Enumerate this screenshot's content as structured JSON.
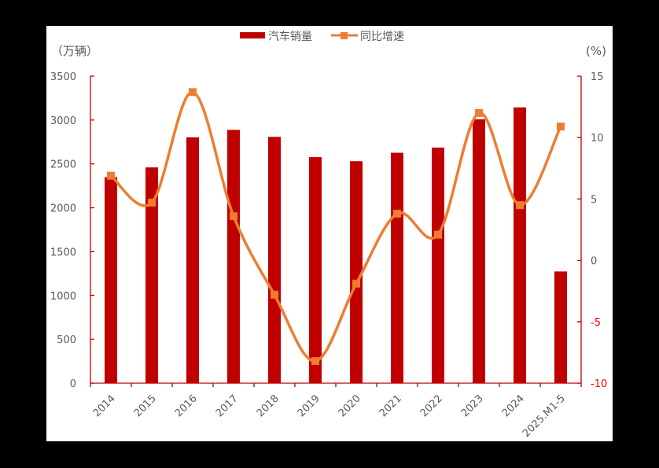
{
  "chart_data": {
    "type": "bar+line",
    "title": "",
    "categories": [
      "2014",
      "2015",
      "2016",
      "2017",
      "2018",
      "2019",
      "2020",
      "2021",
      "2022",
      "2023",
      "2024",
      "2025.M1-5"
    ],
    "series": [
      {
        "name": "汽车销量",
        "type": "bar",
        "axis": "left",
        "color": "#c00000",
        "values": [
          2349,
          2460,
          2803,
          2888,
          2808,
          2577,
          2531,
          2627,
          2686,
          3009,
          3144,
          1275
        ]
      },
      {
        "name": "同比增速",
        "type": "line",
        "axis": "right",
        "color": "#ed7d31",
        "marker": "square",
        "smooth": true,
        "values": [
          6.9,
          4.7,
          13.7,
          3.6,
          -2.8,
          -8.2,
          -1.9,
          3.8,
          2.1,
          12.0,
          4.5,
          10.9
        ]
      }
    ],
    "left_axis": {
      "label": "（万辆）",
      "ylim": [
        0,
        3500
      ],
      "ticks": [
        0,
        500,
        1000,
        1500,
        2000,
        2500,
        3000,
        3500
      ]
    },
    "right_axis": {
      "label": "(%)",
      "ylim": [
        -10,
        15
      ],
      "ticks": [
        -10,
        -5,
        0,
        5,
        10,
        15
      ]
    },
    "legend": {
      "position": "top",
      "entries": [
        "汽车销量",
        "同比增速"
      ]
    },
    "grid": false,
    "xlabel": "",
    "ylabel": "万辆",
    "y2label": "%"
  },
  "legend": {
    "bar_label": "汽车销量",
    "line_label": "同比增速"
  },
  "axes": {
    "left_unit": "（万辆）",
    "right_unit": "(%)"
  },
  "colors": {
    "bar": "#c00000",
    "line": "#ed7d31",
    "axis": "#c00000",
    "negative_tick": "#ff0000",
    "tick_text": "#595959"
  }
}
